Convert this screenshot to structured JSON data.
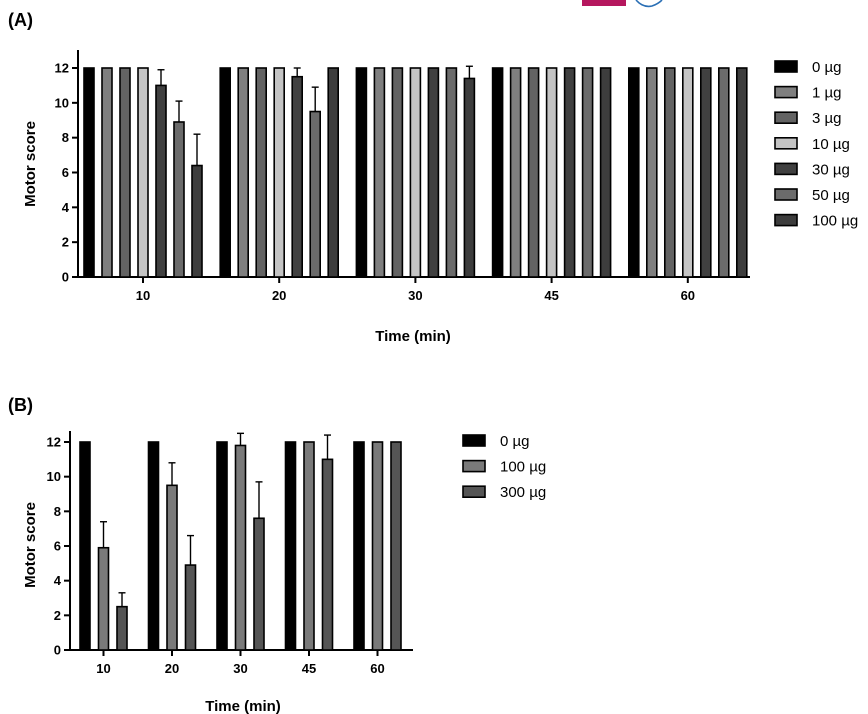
{
  "header": {
    "logo_colors": [
      "#b5175e",
      "#2a6fb5"
    ]
  },
  "chart_data": [
    {
      "panel": "(A)",
      "type": "bar",
      "xlabel": "Time (min)",
      "ylabel": "Motor score",
      "categories": [
        "10",
        "20",
        "30",
        "45",
        "60"
      ],
      "ylim": [
        0,
        12
      ],
      "yticks": [
        0,
        2,
        4,
        6,
        8,
        10,
        12
      ],
      "error_bars": "up",
      "series": [
        {
          "name": "0 µg",
          "color": "#000000",
          "values": [
            12,
            12,
            12,
            12,
            12
          ],
          "errors": [
            0,
            0,
            0,
            0,
            0
          ]
        },
        {
          "name": "1 µg",
          "color": "#7f7f7f",
          "values": [
            12,
            12,
            12,
            12,
            12
          ],
          "errors": [
            0,
            0,
            0,
            0,
            0
          ]
        },
        {
          "name": "3 µg",
          "color": "#636363",
          "values": [
            12,
            12,
            12,
            12,
            12
          ],
          "errors": [
            0,
            0,
            0,
            0,
            0
          ]
        },
        {
          "name": "10 µg",
          "color": "#c4c4c4",
          "values": [
            12,
            12,
            12,
            12,
            12
          ],
          "errors": [
            0,
            0,
            0,
            0,
            0
          ]
        },
        {
          "name": "30 µg",
          "color": "#404040",
          "values": [
            11,
            11.5,
            12,
            12,
            12
          ],
          "errors": [
            0.9,
            0.5,
            0,
            0,
            0
          ]
        },
        {
          "name": "50 µg",
          "color": "#6b6b6b",
          "values": [
            8.9,
            9.5,
            12,
            12,
            12
          ],
          "errors": [
            1.2,
            1.4,
            0,
            0,
            0
          ]
        },
        {
          "name": "100 µg",
          "color": "#3d3d3d",
          "values": [
            6.4,
            12,
            11.4,
            12,
            12
          ],
          "errors": [
            1.8,
            0,
            0.7,
            0,
            0
          ]
        }
      ]
    },
    {
      "panel": "(B)",
      "type": "bar",
      "xlabel": "Time (min)",
      "ylabel": "Motor score",
      "categories": [
        "10",
        "20",
        "30",
        "45",
        "60"
      ],
      "ylim": [
        0,
        12
      ],
      "yticks": [
        0,
        2,
        4,
        6,
        8,
        10,
        12
      ],
      "error_bars": "up",
      "series": [
        {
          "name": "0 µg",
          "color": "#000000",
          "values": [
            12,
            12,
            12,
            12,
            12
          ],
          "errors": [
            0,
            0,
            0,
            0,
            0
          ]
        },
        {
          "name": "100 µg",
          "color": "#7a7a7a",
          "values": [
            5.9,
            9.5,
            11.8,
            12,
            12
          ],
          "errors": [
            1.5,
            1.3,
            0.7,
            0,
            0
          ]
        },
        {
          "name": "300 µg",
          "color": "#555555",
          "values": [
            2.5,
            4.9,
            7.6,
            11,
            12
          ],
          "errors": [
            0.8,
            1.7,
            2.1,
            1.4,
            0
          ]
        }
      ]
    }
  ]
}
